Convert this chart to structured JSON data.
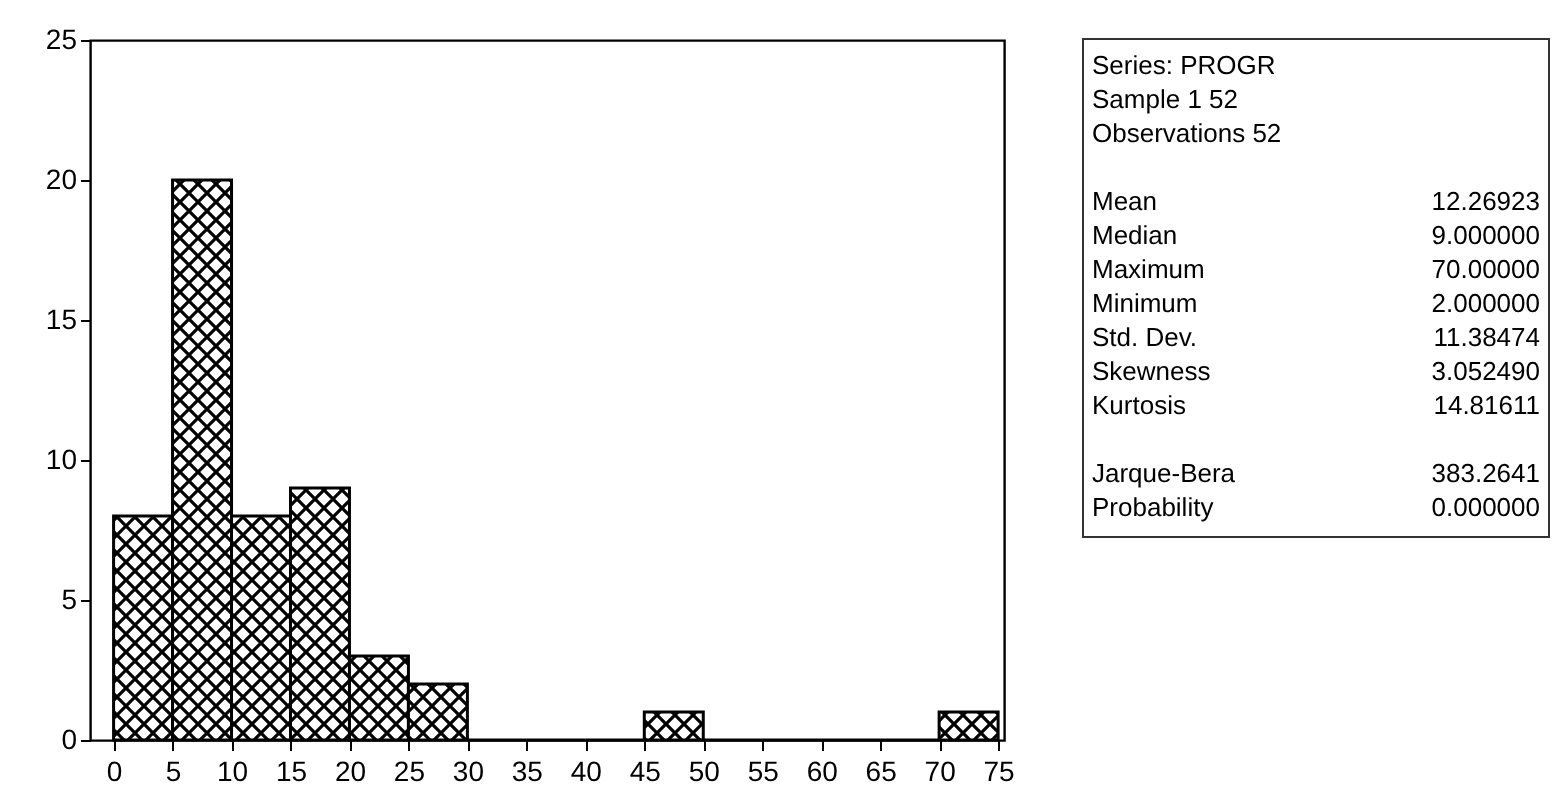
{
  "chart_data": [
    {
      "type": "histogram",
      "bins": [
        0,
        5,
        10,
        15,
        20,
        25,
        30,
        35,
        40,
        45,
        50,
        55,
        60,
        65,
        70,
        75
      ],
      "values": [
        8,
        20,
        8,
        9,
        3,
        2,
        0,
        0,
        0,
        1,
        0,
        0,
        0,
        0,
        1
      ],
      "color": "#000000",
      "xlim": [
        -2,
        75.5
      ],
      "xticks": [
        0,
        5,
        10,
        15,
        20,
        25,
        30,
        35,
        40,
        45,
        50,
        55,
        60,
        65,
        70,
        75
      ],
      "ylim": [
        0,
        25
      ],
      "yticks": [
        0,
        5,
        10,
        15,
        20,
        25
      ],
      "grid": false
    },
    {
      "type": "other",
      "annotations": [
        "Series: PROGR",
        "Sample 1 52",
        "Observations 52",
        "Mean",
        "12.26923",
        "Median",
        "9.000000",
        "Maximum",
        "70.00000",
        "Minimum",
        "2.000000",
        "Std. Dev.",
        "11.38474",
        "Skewness",
        "3.052490",
        "Kurtosis",
        "14.81611",
        "Jarque-Bera",
        "383.2641",
        "Probability",
        "0.000000"
      ]
    }
  ]
}
